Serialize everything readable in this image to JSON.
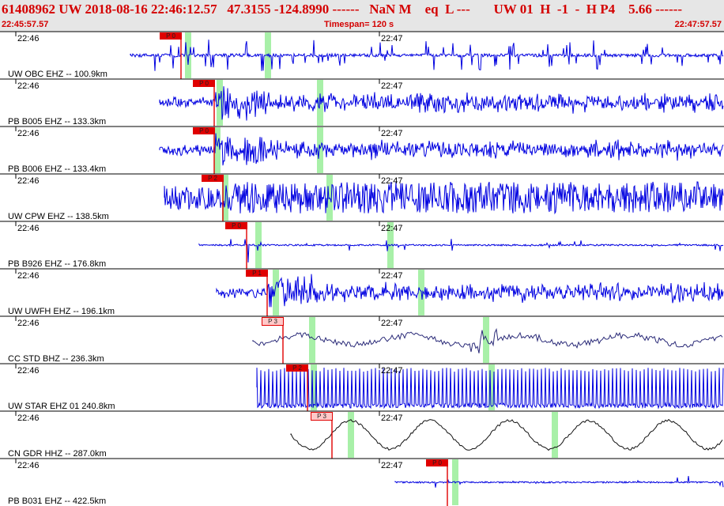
{
  "header": {
    "title": "61408962 UW 2018-08-16 22:46:12.57   47.3155 -124.8990 ------   NaN M    eq  L ---       UW 01  H  -1  -  H P4    5.66 ------",
    "start_time": "22:45:57.57",
    "timespan": "Timespan= 120 s",
    "end_time": "22:47:57.57"
  },
  "colors": {
    "header_bg": "#e6e6e6",
    "header_text": "#d40000",
    "trace_blue": "#0000e0",
    "trace_navy": "#2a2a78",
    "trace_black": "#111111",
    "pick_red": "#e00000",
    "pick_pink": "#ffc8c8",
    "marker_green": "#a8f0a8",
    "divider": "#000000"
  },
  "time_marks": {
    "left": "22:46",
    "mid": "22:47"
  },
  "traces": [
    {
      "label": "UW OBC EHZ -- 100.9km",
      "pick": "P 0",
      "pick_style": "red",
      "color": "blue",
      "waveform": "spiky"
    },
    {
      "label": "PB B005 EHZ -- 133.3km",
      "pick": "P 0",
      "pick_style": "red",
      "color": "blue",
      "waveform": "noise"
    },
    {
      "label": "PB B006 EHZ -- 133.4km",
      "pick": "P 0",
      "pick_style": "red",
      "color": "blue",
      "waveform": "noise"
    },
    {
      "label": "UW CPW EHZ -- 138.5km",
      "pick": "P 2",
      "pick_style": "red",
      "color": "blue",
      "waveform": "dense"
    },
    {
      "label": "PB B926 EHZ -- 176.8km",
      "pick": "P 0",
      "pick_style": "red",
      "color": "blue",
      "waveform": "flat"
    },
    {
      "label": "UW UWFH EHZ -- 196.1km",
      "pick": "P 1",
      "pick_style": "red",
      "color": "blue",
      "waveform": "noise"
    },
    {
      "label": "CC STD BHZ -- 236.3km",
      "pick": "P 3",
      "pick_style": "pink",
      "color": "navy",
      "waveform": "wavy"
    },
    {
      "label": "UW STAR EHZ 01 240.8km",
      "pick": "P 2",
      "pick_style": "red",
      "color": "blue",
      "waveform": "comb"
    },
    {
      "label": "CN GDR HHZ -- 287.0km",
      "pick": "P 3",
      "pick_style": "pink",
      "color": "black",
      "waveform": "sine"
    },
    {
      "label": "PB B031 EHZ -- 422.5km",
      "pick": "P 0",
      "pick_style": "red",
      "color": "blue",
      "waveform": "flat"
    }
  ]
}
